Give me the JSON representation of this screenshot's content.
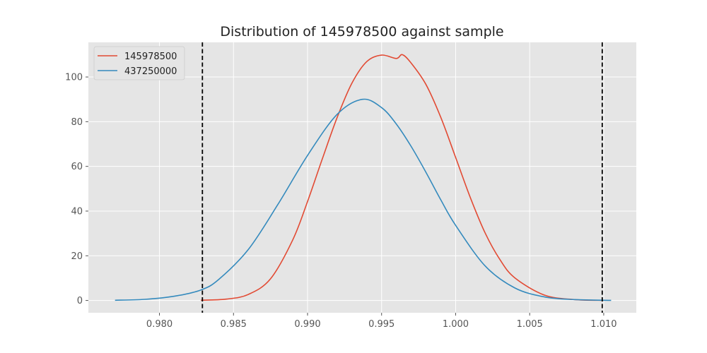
{
  "chart_data": {
    "type": "line",
    "title": "Distribution of 145978500 against sample",
    "xlabel": "",
    "ylabel": "",
    "xlim": [
      0.9752,
      1.0122
    ],
    "ylim": [
      -5.5,
      115.5
    ],
    "xticks": [
      0.98,
      0.985,
      0.99,
      0.995,
      1.0,
      1.005,
      1.01
    ],
    "xtick_labels": [
      "0.980",
      "0.985",
      "0.990",
      "0.995",
      "1.000",
      "1.005",
      "1.010"
    ],
    "yticks": [
      0,
      20,
      40,
      60,
      80,
      100
    ],
    "ytick_labels": [
      "0",
      "20",
      "40",
      "60",
      "80",
      "100"
    ],
    "grid": true,
    "legend_position": "top-left",
    "background": "#e5e5e5",
    "series": [
      {
        "name": "145978500",
        "color": "#e24a33",
        "x": [
          0.9828,
          0.9845,
          0.986,
          0.9875,
          0.989,
          0.99,
          0.991,
          0.992,
          0.993,
          0.994,
          0.995,
          0.996,
          0.9964,
          0.997,
          0.998,
          0.999,
          1.0,
          1.001,
          1.002,
          1.003,
          1.004,
          1.006,
          1.008,
          1.01
        ],
        "values": [
          0.1,
          0.6,
          2.7,
          9.7,
          27.1,
          44.3,
          63.4,
          81.9,
          97.3,
          106.9,
          109.8,
          108.3,
          110.0,
          106.2,
          96.6,
          81.9,
          64.0,
          45.9,
          30.1,
          18.2,
          10.1,
          2.4,
          0.4,
          0.05
        ]
      },
      {
        "name": "437250000",
        "color": "#348abd",
        "x": [
          0.977,
          0.979,
          0.981,
          0.9828,
          0.984,
          0.986,
          0.988,
          0.99,
          0.992,
          0.9937,
          0.995,
          0.996,
          0.997,
          0.998,
          0.999,
          1.0,
          1.002,
          1.004,
          1.006,
          1.008,
          1.0105
        ],
        "values": [
          0.1,
          0.5,
          1.9,
          4.7,
          9.4,
          22.8,
          43.0,
          64.9,
          83.3,
          90.0,
          86.3,
          78.9,
          68.9,
          57.3,
          45.0,
          33.6,
          15.4,
          5.6,
          1.6,
          0.4,
          0.05
        ]
      }
    ],
    "reference_lines": {
      "orientation": "vertical",
      "style": "dashed",
      "color": "#000000",
      "x": [
        0.9829,
        1.0099
      ]
    }
  }
}
